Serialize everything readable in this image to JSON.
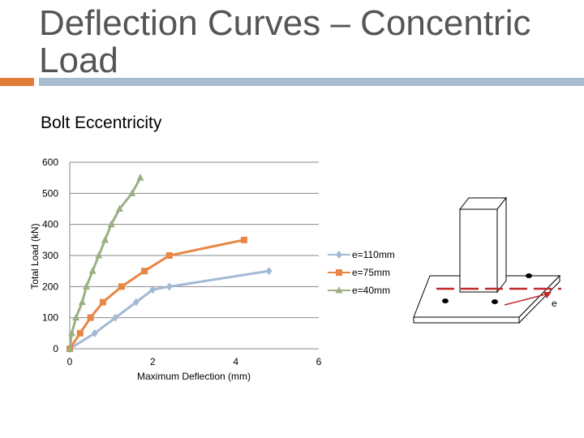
{
  "slide": {
    "title": "Deflection Curves – Concentric Load",
    "subtitle": "Bolt Eccentricity",
    "colors": {
      "accent_orange": "#e07b39",
      "accent_blue": "#a9bccf"
    }
  },
  "chart_data": {
    "type": "line",
    "xlabel": "Maximum Deflection (mm)",
    "ylabel": "Total Load (kN)",
    "xlim": [
      0,
      6
    ],
    "ylim": [
      0,
      600
    ],
    "x_ticks": [
      0,
      2,
      4,
      6
    ],
    "y_ticks": [
      0,
      100,
      200,
      300,
      400,
      500,
      600
    ],
    "grid": "horizontal",
    "legend_position": "right",
    "series": [
      {
        "name": "e=110mm",
        "color": "#a3b9d4",
        "marker": "diamond",
        "x": [
          0,
          0.6,
          1.1,
          1.6,
          2.0,
          2.4,
          4.8
        ],
        "y": [
          0,
          50,
          100,
          150,
          190,
          200,
          250
        ]
      },
      {
        "name": "e=75mm",
        "color": "#e88645",
        "marker": "square",
        "x": [
          0,
          0.25,
          0.5,
          0.8,
          1.25,
          1.8,
          2.4,
          4.2
        ],
        "y": [
          0,
          50,
          100,
          150,
          200,
          250,
          300,
          350
        ]
      },
      {
        "name": "e=40mm",
        "color": "#9caf84",
        "marker": "triangle",
        "x": [
          0,
          0.05,
          0.15,
          0.3,
          0.4,
          0.55,
          0.7,
          0.85,
          1.0,
          1.2,
          1.5,
          1.7
        ],
        "y": [
          0,
          50,
          100,
          150,
          200,
          250,
          300,
          350,
          400,
          450,
          500,
          550
        ]
      }
    ]
  },
  "diagram": {
    "eccentricity_label": "e"
  }
}
